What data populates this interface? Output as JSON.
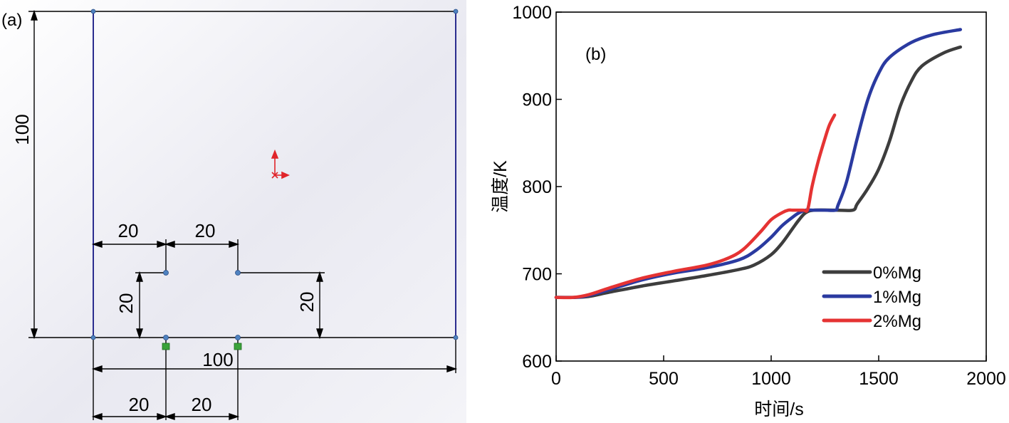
{
  "panel_a": {
    "label": "(a)",
    "dimensions": {
      "outer_width": "100",
      "outer_height": "100",
      "top_left_width": "20",
      "top_right_width": "20",
      "left_height": "20",
      "right_height": "20",
      "bottom_left_width": "20",
      "bottom_right_width": "20"
    },
    "colors": {
      "outline": "#2b2d8f",
      "dimension": "#000000",
      "origin": "#e0242a",
      "point": "#4f82c0",
      "fix_marker": "#3aa33a"
    }
  },
  "chart_data": {
    "type": "line",
    "panel_label": "(b)",
    "xlabel": "时间/s",
    "ylabel": "温度/K",
    "xlim": [
      0,
      2000
    ],
    "ylim": [
      600,
      1000
    ],
    "x_ticks": [
      "0",
      "500",
      "1000",
      "1500",
      "2000"
    ],
    "y_ticks": [
      "600",
      "700",
      "800",
      "900",
      "1000"
    ],
    "grid": false,
    "legend_position": "lower-right",
    "series": [
      {
        "name": "0%Mg",
        "color": "#3d3d3d",
        "x": [
          0,
          80,
          150,
          250,
          400,
          550,
          700,
          850,
          920,
          1000,
          1050,
          1100,
          1130,
          1160,
          1200,
          1300,
          1380,
          1400,
          1450,
          1500,
          1550,
          1600,
          1650,
          1700,
          1800,
          1880
        ],
        "y": [
          673,
          673,
          674,
          679,
          686,
          692,
          698,
          705,
          710,
          722,
          735,
          752,
          762,
          770,
          773,
          773,
          773,
          780,
          798,
          820,
          852,
          892,
          920,
          938,
          953,
          960
        ]
      },
      {
        "name": "1%Mg",
        "color": "#2a3aa0",
        "x": [
          0,
          90,
          150,
          250,
          400,
          550,
          700,
          850,
          930,
          1000,
          1050,
          1100,
          1130,
          1160,
          1200,
          1250,
          1300,
          1310,
          1350,
          1400,
          1450,
          1500,
          1550,
          1650,
          1750,
          1880
        ],
        "y": [
          673,
          673,
          675,
          682,
          693,
          701,
          707,
          716,
          727,
          742,
          755,
          765,
          770,
          773,
          773,
          773,
          773,
          778,
          805,
          855,
          900,
          930,
          948,
          965,
          974,
          980
        ]
      },
      {
        "name": "2%Mg",
        "color": "#e53333",
        "x": [
          0,
          80,
          150,
          250,
          400,
          550,
          700,
          800,
          870,
          950,
          1000,
          1050,
          1080,
          1100,
          1150,
          1170,
          1190,
          1220,
          1250,
          1270,
          1295
        ],
        "y": [
          673,
          673,
          676,
          684,
          695,
          703,
          710,
          718,
          728,
          748,
          762,
          770,
          773,
          773,
          773,
          774,
          800,
          830,
          855,
          870,
          882
        ]
      }
    ]
  }
}
